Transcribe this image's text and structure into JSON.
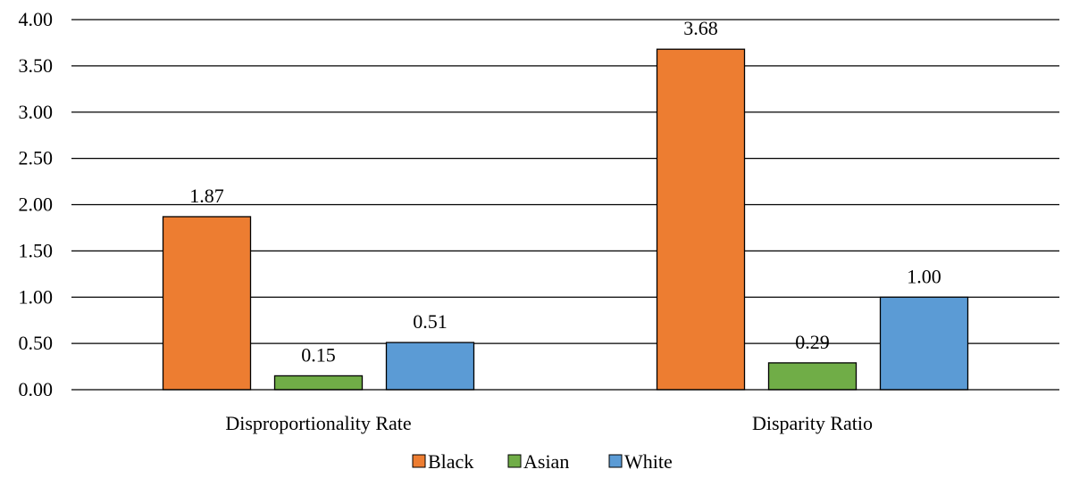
{
  "chart_data": {
    "type": "bar",
    "title": "",
    "xlabel": "",
    "ylabel": "",
    "categories": [
      "Disproportionality Rate",
      "Disparity Ratio"
    ],
    "series": [
      {
        "name": "Black",
        "values": [
          1.87,
          3.68
        ],
        "color": "#ED7D31"
      },
      {
        "name": "Asian",
        "values": [
          0.15,
          0.29
        ],
        "color": "#70AD47"
      },
      {
        "name": "White",
        "values": [
          0.51,
          1.0
        ],
        "color": "#5B9BD5"
      }
    ],
    "data_labels": [
      [
        "1.87",
        "3.68"
      ],
      [
        "0.15",
        "0.29"
      ],
      [
        "0.51",
        "1.00"
      ]
    ],
    "ylim": [
      0,
      4
    ],
    "yticks": [
      "0.00",
      "0.50",
      "1.00",
      "1.50",
      "2.00",
      "2.50",
      "3.00",
      "3.50",
      "4.00"
    ],
    "grid": true,
    "legend": "bottom-center"
  }
}
